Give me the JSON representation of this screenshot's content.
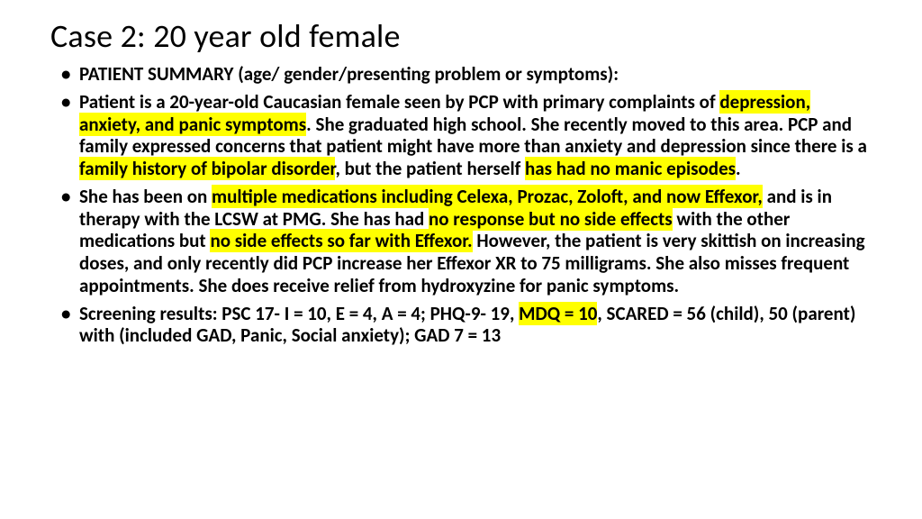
{
  "title": "Case 2:  20 year old female",
  "bullets": {
    "b0": {
      "s0": "PATIENT SUMMARY (age/ gender/presenting problem or symptoms):"
    },
    "b1": {
      "s0": "Patient is a 20-year-old Caucasian female seen by PCP with primary complaints of ",
      "s1": "depression, anxiety, and panic symptoms",
      "s2": ".  She graduated high school.  She recently moved to this area.  PCP and family expressed concerns that patient might have more than anxiety and depression since there is a ",
      "s3": "family history of bipolar disorder",
      "s4": ", but the patient herself ",
      "s5": "has had no manic episodes",
      "s6": "."
    },
    "b2": {
      "s0": "She has been on ",
      "s1": "multiple medications including Celexa, Prozac, Zoloft, and now Effexor,",
      "s2": " and is in therapy with the LCSW at PMG.  She has had ",
      "s3": "no response but no side effects",
      "s4": " with the other medications but ",
      "s5": "no side effects so far with Effexor.",
      "s6": "  However, the patient is very skittish on increasing doses, and only recently did PCP increase her Effexor XR to 75 milligrams.  She also misses frequent appointments.  She does receive relief from hydroxyzine for panic symptoms."
    },
    "b3": {
      "s0": "Screening results:  PSC 17- I = 10, E = 4, A = 4; PHQ-9- 19, ",
      "s1": "MDQ = 10",
      "s2": ", SCARED = 56 (child), 50 (parent) with (included GAD, Panic, Social anxiety); GAD 7 = 13"
    }
  },
  "colors": {
    "highlight": "#ffff00",
    "text": "#000000",
    "background": "#ffffff"
  },
  "typography": {
    "title_fontsize": 36,
    "body_fontsize": 21,
    "body_weight": 700,
    "line_height": 1.18,
    "font_family": "Calibri"
  }
}
